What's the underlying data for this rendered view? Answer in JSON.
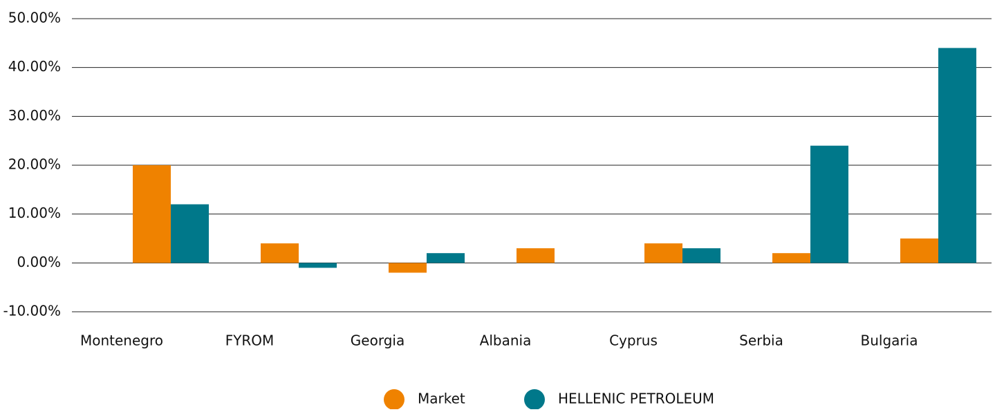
{
  "chart_data": {
    "type": "bar",
    "categories": [
      "Montenegro",
      "FYROM",
      "Georgia",
      "Albania",
      "Cyprus",
      "Serbia",
      "Bulgaria"
    ],
    "series": [
      {
        "name": "Market",
        "color": "#ef8200",
        "values": [
          20,
          4,
          -2,
          3,
          4,
          2,
          5
        ]
      },
      {
        "name": "HELLENIC PETROLEUM",
        "color": "#00788a",
        "values": [
          12,
          -1,
          2,
          0,
          3,
          24,
          44
        ]
      }
    ],
    "ylim": [
      -10,
      50
    ],
    "yticks": [
      {
        "value": -10,
        "label": "-10.00%"
      },
      {
        "value": 0,
        "label": "0.00%"
      },
      {
        "value": 10,
        "label": "10.00%"
      },
      {
        "value": 20,
        "label": "20.00%"
      },
      {
        "value": 30,
        "label": "30.00%"
      },
      {
        "value": 40,
        "label": "40.00%"
      },
      {
        "value": 50,
        "label": "50.00%"
      }
    ],
    "grid": true,
    "legend": "bottom"
  }
}
